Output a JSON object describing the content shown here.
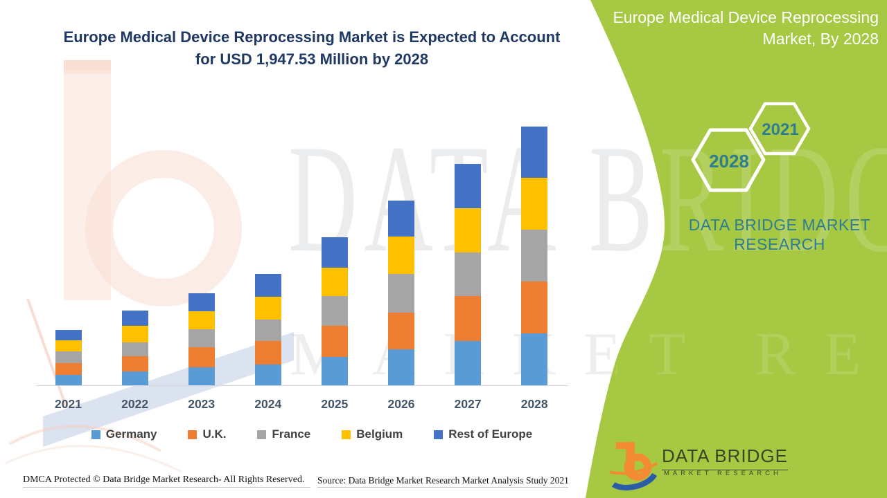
{
  "left_panel": {
    "title_line1": "Europe Medical Device Reprocessing Market is Expected to Account",
    "title_line2": "for USD 1,947.53 Million by 2028",
    "footer": {
      "dmca": "DMCA Protected © Data Bridge Market Research- All Rights Reserved.",
      "source": "Source: Data Bridge Market Research Market Analysis Study 2021"
    }
  },
  "right_panel": {
    "title_line1": "Europe Medical Device Reprocessing",
    "title_line2": "Market, By 2028",
    "hexagons": [
      {
        "label": "2028"
      },
      {
        "label": "2021"
      }
    ],
    "brand_text_line1": "DATA BRIDGE MARKET",
    "brand_text_line2": "RESEARCH",
    "logo": {
      "icon": "data-bridge-b-swoosh-icon",
      "name": "DATA BRIDGE",
      "tagline": "MARKET RESEARCH"
    },
    "colors": {
      "panel_green": "#A6C843",
      "teal_text": "#2E7D93",
      "hexagon_outline": "#FFFFFF"
    }
  },
  "watermark": {
    "big_text": "DATA BRIDGE",
    "sub_text": "MARKET RESEARCH"
  },
  "chart_data": {
    "type": "bar",
    "stacked": true,
    "title": "Europe Medical Device Reprocessing Market is Expected to Account for USD 1,947.53 Million by 2028",
    "unit": "USD Million",
    "categories": [
      "2021",
      "2022",
      "2023",
      "2024",
      "2025",
      "2026",
      "2027",
      "2028"
    ],
    "series": [
      {
        "name": "Germany",
        "color": "#5B9BD5",
        "values": [
          78,
          104,
          135,
          158,
          213,
          271,
          333,
          390
        ]
      },
      {
        "name": "U.K.",
        "color": "#ED7D31",
        "values": [
          90,
          116,
          151,
          177,
          234,
          276,
          338,
          390
        ]
      },
      {
        "name": "France",
        "color": "#A5A5A5",
        "values": [
          87,
          104,
          135,
          160,
          224,
          292,
          328,
          390
        ]
      },
      {
        "name": "Belgium",
        "color": "#FFC000",
        "values": [
          83,
          124,
          135,
          170,
          213,
          281,
          333,
          390
        ]
      },
      {
        "name": "Rest of Europe",
        "color": "#4472C4",
        "values": [
          78,
          115,
          137,
          173,
          229,
          271,
          333,
          387.53
        ]
      }
    ],
    "totals": [
      416,
      563,
      693,
      838,
      1113,
      1391,
      1665,
      1947.53
    ],
    "xlabel": "",
    "ylabel": "",
    "ylim": [
      0,
      1950
    ],
    "gridlines": false,
    "legend_position": "bottom"
  }
}
